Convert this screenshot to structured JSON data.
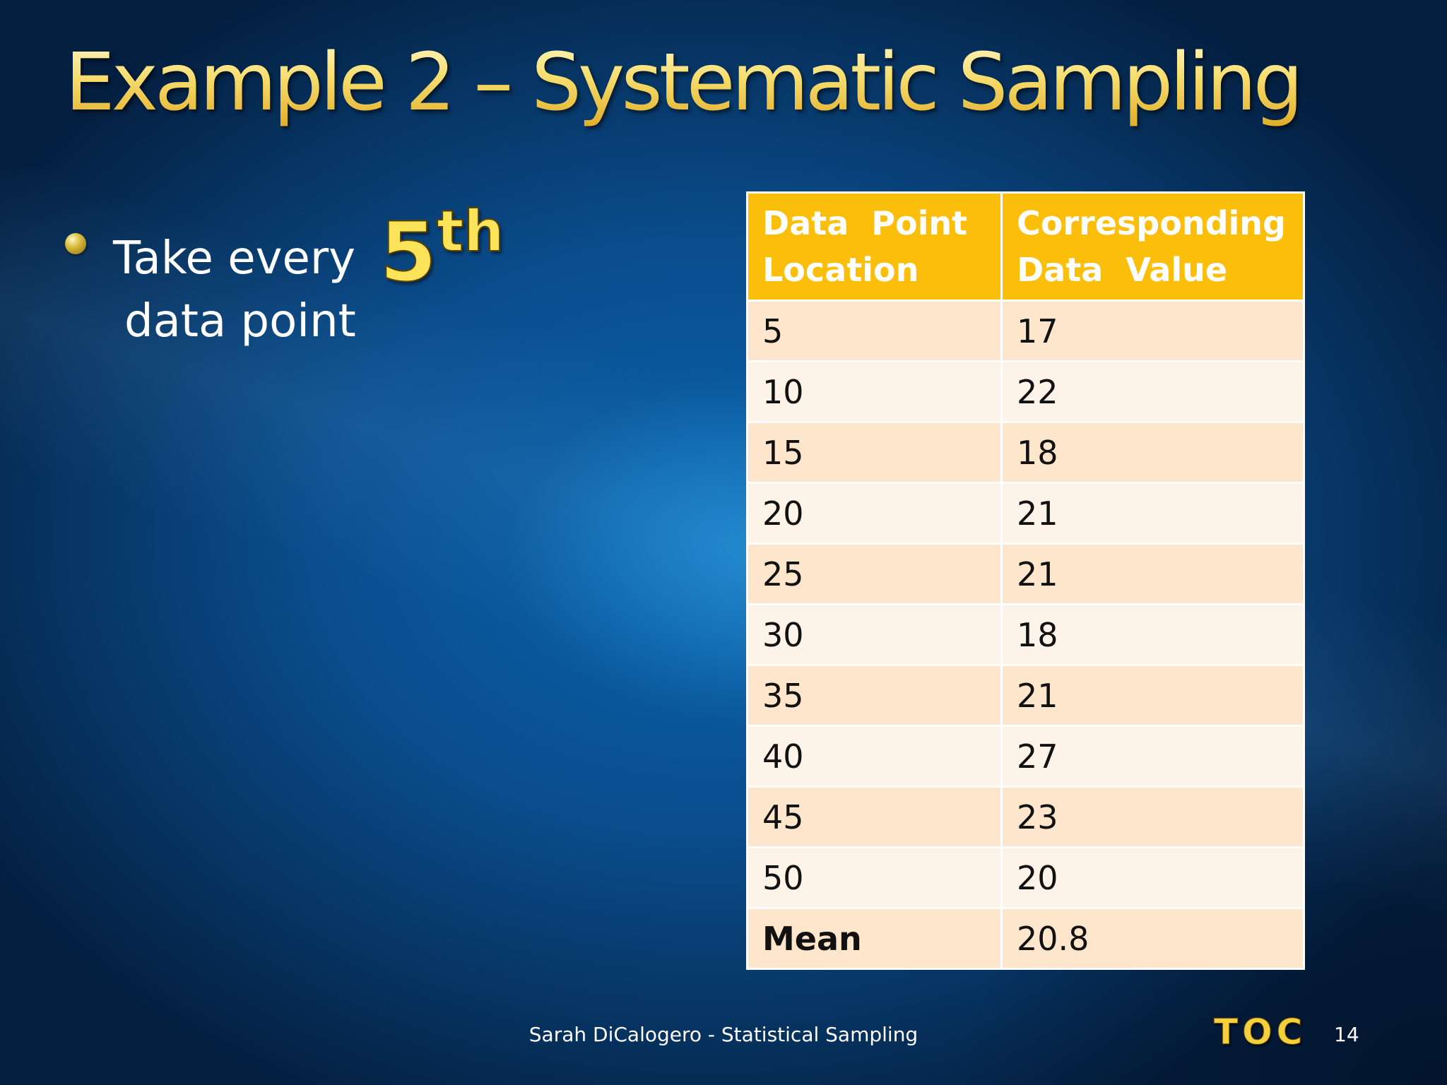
{
  "slide": {
    "title": "Example 2 – Systematic Sampling",
    "bullet": {
      "line1_text": "Take every",
      "ordinal_number": "5",
      "ordinal_suffix": "th",
      "line2_text": "data point"
    },
    "table": {
      "headers": [
        "Data  Point\nLocation",
        "Corresponding\nData  Value"
      ],
      "rows": [
        {
          "location": "5",
          "value": "17"
        },
        {
          "location": "10",
          "value": "22"
        },
        {
          "location": "15",
          "value": "18"
        },
        {
          "location": "20",
          "value": "21"
        },
        {
          "location": "25",
          "value": "21"
        },
        {
          "location": "30",
          "value": "18"
        },
        {
          "location": "35",
          "value": "21"
        },
        {
          "location": "40",
          "value": "27"
        },
        {
          "location": "45",
          "value": "23"
        },
        {
          "location": "50",
          "value": "20"
        }
      ],
      "mean_label": "Mean",
      "mean_value": "20.8"
    },
    "footer": "Sarah DiCalogero - Statistical Sampling",
    "toc_label": "TOC",
    "slide_number": "14"
  },
  "colors": {
    "title_gold": "#f3d866",
    "header_orange": "#fbbe0b",
    "row_odd": "#fde6cb",
    "row_even": "#fdf3e8",
    "background_blue": "#0a4e8f"
  }
}
